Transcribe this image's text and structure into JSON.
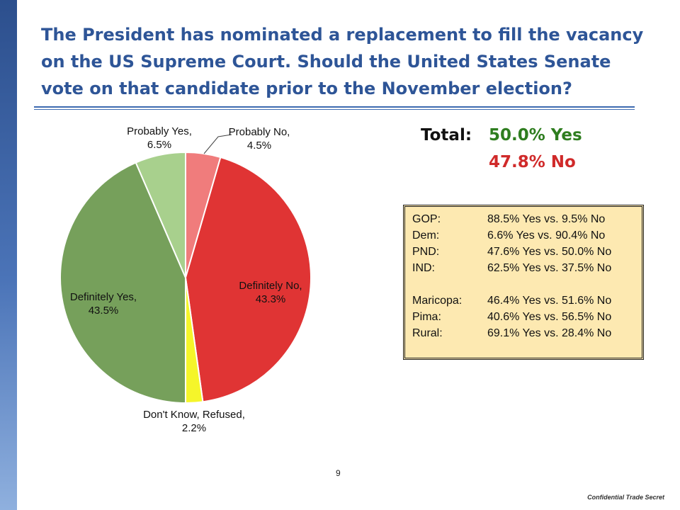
{
  "slide": {
    "title": "The President has nominated a replacement to fill the vacancy on the US Supreme Court. Should the United States Senate vote on that candidate prior to the November election?",
    "page_number": "9",
    "footer": "Confidential Trade Secret"
  },
  "totals": {
    "label": "Total:",
    "yes": "50.0% Yes",
    "no": "47.8% No",
    "yes_color": "#2e7d1f",
    "no_color": "#d02a2a"
  },
  "breakdown": {
    "rows": [
      {
        "label": "GOP:",
        "value": "88.5% Yes vs. 9.5% No"
      },
      {
        "label": "Dem:",
        "value": "6.6% Yes vs. 90.4% No"
      },
      {
        "label": "PND:",
        "value": "47.6% Yes vs. 50.0% No"
      },
      {
        "label": "IND:",
        "value": "62.5% Yes vs. 37.5% No"
      },
      {
        "label": "Maricopa:",
        "value": "46.4% Yes vs. 51.6% No"
      },
      {
        "label": "Pima:",
        "value": "40.6% Yes vs. 56.5% No"
      },
      {
        "label": "Rural:",
        "value": "69.1% Yes vs. 28.4% No"
      }
    ]
  },
  "chart_data": {
    "type": "pie",
    "start": "12 o'clock, clockwise",
    "slices": [
      {
        "label": "Probably No,",
        "value_label": "4.5%",
        "value": 4.5,
        "color": "#f07c7c"
      },
      {
        "label": "Definitely No,",
        "value_label": "43.3%",
        "value": 43.3,
        "color": "#e03434"
      },
      {
        "label": "Don't Know, Refused,",
        "value_label": "2.2%",
        "value": 2.2,
        "color": "#f5f52a"
      },
      {
        "label": "Definitely Yes,",
        "value_label": "43.5%",
        "value": 43.5,
        "color": "#76a05b"
      },
      {
        "label": "Probably Yes,",
        "value_label": "6.5%",
        "value": 6.5,
        "color": "#a8d08d"
      }
    ]
  }
}
